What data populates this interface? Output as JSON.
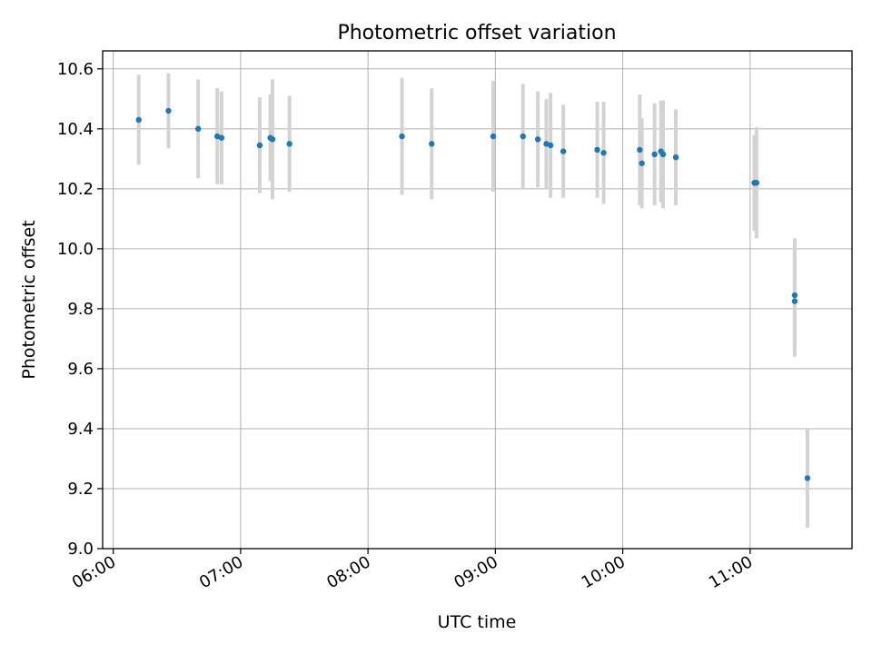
{
  "chart_data": {
    "type": "scatter",
    "title": "Photometric offset variation",
    "xlabel": "UTC time",
    "ylabel": "Photometric offset",
    "x_tick_labels": [
      "06:00",
      "07:00",
      "08:00",
      "09:00",
      "10:00",
      "11:00"
    ],
    "x_ticks": [
      "06:00",
      "07:00",
      "08:00",
      "09:00",
      "10:00",
      "11:00"
    ],
    "y_tick_labels": [
      "9.0",
      "9.2",
      "9.4",
      "9.6",
      "9.8",
      "10.0",
      "10.2",
      "10.4",
      "10.6"
    ],
    "y_ticks": [
      9.0,
      9.2,
      9.4,
      9.6,
      9.8,
      10.0,
      10.2,
      10.4,
      10.6
    ],
    "xlim": [
      "05:55",
      "11:48"
    ],
    "ylim": [
      9.0,
      10.66
    ],
    "grid": true,
    "marker_color": "#1f77b4",
    "errorbar_color": "#d3d3d3",
    "series": [
      {
        "points": [
          {
            "x": "06:12",
            "y": 10.43,
            "err": 0.15
          },
          {
            "x": "06:26",
            "y": 10.46,
            "err": 0.125
          },
          {
            "x": "06:40",
            "y": 10.4,
            "err": 0.165
          },
          {
            "x": "06:49",
            "y": 10.375,
            "err": 0.16
          },
          {
            "x": "06:51",
            "y": 10.37,
            "err": 0.155
          },
          {
            "x": "07:09",
            "y": 10.345,
            "err": 0.16
          },
          {
            "x": "07:14",
            "y": 10.37,
            "err": 0.145
          },
          {
            "x": "07:15",
            "y": 10.365,
            "err": 0.2
          },
          {
            "x": "07:23",
            "y": 10.35,
            "err": 0.16
          },
          {
            "x": "08:16",
            "y": 10.375,
            "err": 0.195
          },
          {
            "x": "08:30",
            "y": 10.35,
            "err": 0.185
          },
          {
            "x": "08:59",
            "y": 10.375,
            "err": 0.185
          },
          {
            "x": "09:13",
            "y": 10.375,
            "err": 0.175
          },
          {
            "x": "09:20",
            "y": 10.365,
            "err": 0.16
          },
          {
            "x": "09:24",
            "y": 10.35,
            "err": 0.15
          },
          {
            "x": "09:26",
            "y": 10.345,
            "err": 0.175
          },
          {
            "x": "09:32",
            "y": 10.325,
            "err": 0.155
          },
          {
            "x": "09:48",
            "y": 10.33,
            "err": 0.16
          },
          {
            "x": "09:51",
            "y": 10.32,
            "err": 0.17
          },
          {
            "x": "10:08",
            "y": 10.33,
            "err": 0.185
          },
          {
            "x": "10:09",
            "y": 10.285,
            "err": 0.15
          },
          {
            "x": "10:15",
            "y": 10.315,
            "err": 0.17
          },
          {
            "x": "10:18",
            "y": 10.325,
            "err": 0.17
          },
          {
            "x": "10:19",
            "y": 10.315,
            "err": 0.18
          },
          {
            "x": "10:25",
            "y": 10.305,
            "err": 0.16
          },
          {
            "x": "11:02",
            "y": 10.22,
            "err": 0.16
          },
          {
            "x": "11:03",
            "y": 10.22,
            "err": 0.185
          },
          {
            "x": "11:21",
            "y": 9.845,
            "err": 0.19
          },
          {
            "x": "11:21",
            "y": 9.825,
            "err": 0.185
          },
          {
            "x": "11:27",
            "y": 9.235,
            "err": 0.165
          }
        ]
      }
    ]
  }
}
